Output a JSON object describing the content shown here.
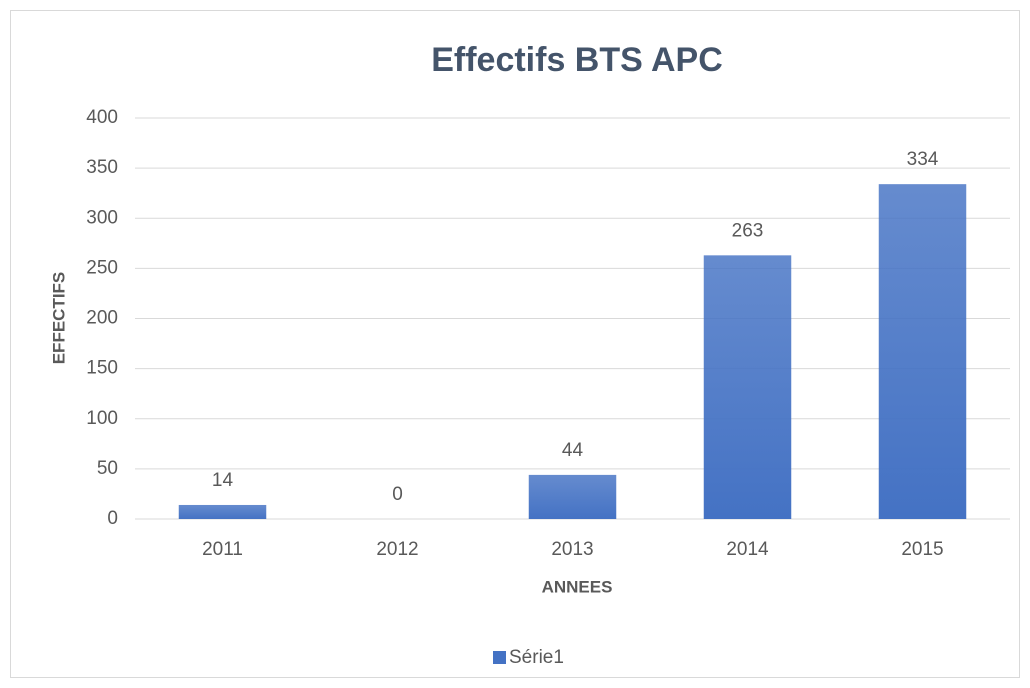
{
  "chart_data": {
    "type": "bar",
    "title": "Effectifs BTS APC",
    "x_label": "ANNEES",
    "y_label": "EFFECTIFS",
    "categories": [
      "2011",
      "2012",
      "2013",
      "2014",
      "2015"
    ],
    "series": [
      {
        "name": "Série1",
        "color": "#4472c4",
        "values": [
          14,
          0,
          44,
          263,
          334
        ]
      }
    ],
    "ylim": [
      0,
      400
    ],
    "yticks": [
      0,
      50,
      100,
      150,
      200,
      250,
      300,
      350,
      400
    ],
    "grid": true,
    "legend": "bottom",
    "data_labels": true
  }
}
